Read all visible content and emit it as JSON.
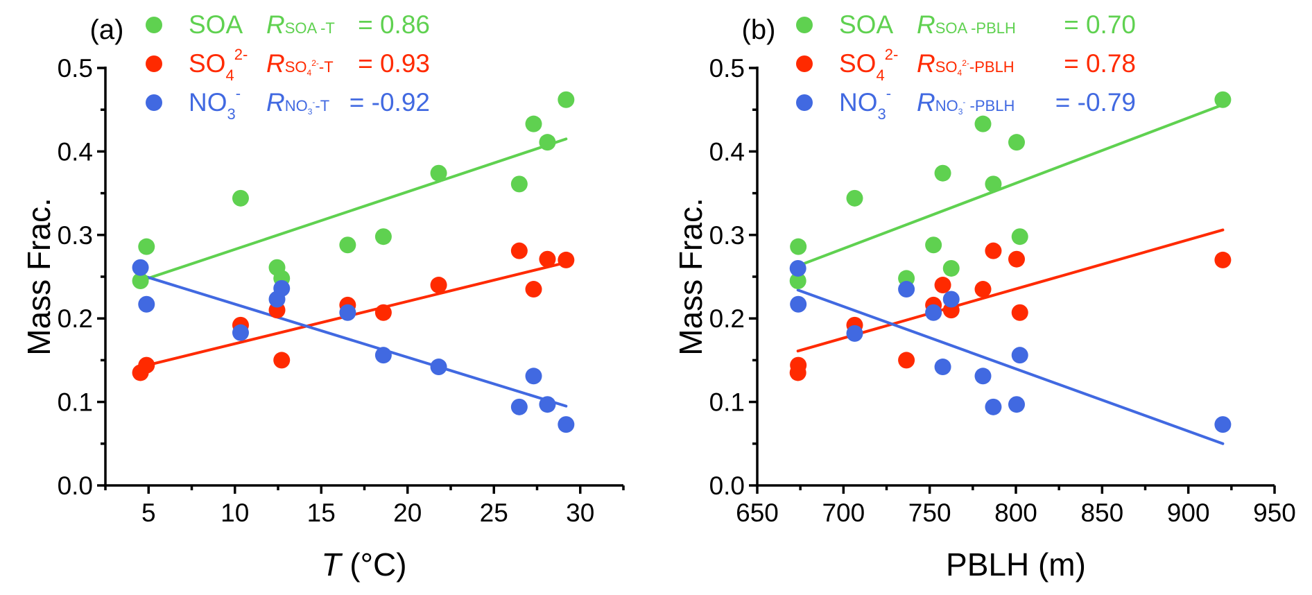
{
  "colors": {
    "SOA": "#5fd150",
    "SO4": "#ff2a00",
    "NO3": "#4169e1",
    "axis": "#000000"
  },
  "chart_data": [
    {
      "type": "scatter",
      "panel_label": "(a)",
      "xlabel_italic": "T",
      "xlabel_rest": " (°C)",
      "ylabel": "Mass Frac.",
      "xlim": [
        2.5,
        32.5
      ],
      "ylim": [
        0.0,
        0.5
      ],
      "xticks": [
        5,
        10,
        15,
        20,
        25,
        30
      ],
      "xticks_minor": [
        2.5,
        7.5,
        12.5,
        17.5,
        22.5,
        27.5,
        32.5
      ],
      "yticks": [
        "0.0",
        "0.1",
        "0.2",
        "0.3",
        "0.4",
        "0.5"
      ],
      "yticks_minor": [
        0.05,
        0.15,
        0.25,
        0.35,
        0.45
      ],
      "grid": false,
      "legend_placement": "top-left",
      "series": [
        {
          "key": "SOA",
          "name": "SOA",
          "name_sub": "",
          "name_sup": "",
          "r_sub": "SOA -T",
          "r_sup": "",
          "r_sub_tail": "",
          "r_value": "0.86",
          "r_eq": "=  0.86",
          "x": [
            4.53,
            4.88,
            10.33,
            12.44,
            12.71,
            16.53,
            18.6,
            21.8,
            26.47,
            27.3,
            28.1,
            29.18
          ],
          "y": [
            0.245,
            0.286,
            0.344,
            0.261,
            0.248,
            0.288,
            0.298,
            0.374,
            0.361,
            0.433,
            0.411,
            0.462
          ],
          "fit": [
            [
              4.53,
              0.245
            ],
            [
              29.18,
              0.415
            ]
          ]
        },
        {
          "key": "SO4",
          "name": "SO",
          "name_sub": "4",
          "name_sup": "2-",
          "r_sub": "SO",
          "r_sub_sub": "4",
          "r_sub_sup": "2-",
          "r_sub_tail": "-T",
          "r_value": "0.93",
          "r_eq": "=  0.93",
          "x": [
            4.53,
            4.88,
            10.33,
            12.44,
            12.71,
            16.53,
            18.6,
            21.8,
            26.47,
            27.3,
            28.1,
            29.18
          ],
          "y": [
            0.135,
            0.144,
            0.192,
            0.21,
            0.15,
            0.216,
            0.207,
            0.24,
            0.281,
            0.235,
            0.271,
            0.27
          ],
          "fit": [
            [
              4.53,
              0.142
            ],
            [
              29.18,
              0.267
            ]
          ]
        },
        {
          "key": "NO3",
          "name": "NO",
          "name_sub": "3",
          "name_sup": "-",
          "r_sub": "NO",
          "r_sub_sub": "3",
          "r_sub_sup": "-",
          "r_sub_tail": "-T",
          "r_value": "-0.92",
          "r_eq": "= -0.92",
          "x": [
            4.53,
            4.88,
            10.33,
            12.44,
            12.71,
            16.53,
            18.6,
            21.8,
            26.47,
            27.3,
            28.1,
            29.18
          ],
          "y": [
            0.261,
            0.217,
            0.183,
            0.223,
            0.236,
            0.207,
            0.156,
            0.142,
            0.094,
            0.131,
            0.097,
            0.073
          ],
          "fit": [
            [
              4.53,
              0.252
            ],
            [
              29.18,
              0.095
            ]
          ]
        }
      ]
    },
    {
      "type": "scatter",
      "panel_label": "(b)",
      "xlabel_italic": "",
      "xlabel_rest": "PBLH (m)",
      "ylabel": "Mass Frac.",
      "xlim": [
        650,
        950
      ],
      "ylim": [
        0.0,
        0.5
      ],
      "xticks": [
        650,
        700,
        750,
        800,
        850,
        900,
        950
      ],
      "xticks_minor": [
        675,
        725,
        775,
        825,
        875,
        925
      ],
      "yticks": [
        "0.0",
        "0.1",
        "0.2",
        "0.3",
        "0.4",
        "0.5"
      ],
      "yticks_minor": [
        0.05,
        0.15,
        0.25,
        0.35,
        0.45
      ],
      "grid": false,
      "legend_placement": "top-left",
      "series": [
        {
          "key": "SOA",
          "name": "SOA",
          "name_sub": "",
          "name_sup": "",
          "r_sub": "SOA -PBLH",
          "r_sup": "",
          "r_sub_tail": "",
          "r_value": "0.70",
          "r_eq": "=  0.70",
          "x": [
            673.6,
            673.8,
            706.5,
            762.5,
            736.5,
            752.2,
            802.3,
            757.6,
            786.9,
            780.9,
            800.4,
            920
          ],
          "y": [
            0.245,
            0.286,
            0.344,
            0.26,
            0.248,
            0.288,
            0.298,
            0.374,
            0.361,
            0.433,
            0.411,
            0.462
          ],
          "fit": [
            [
              673.6,
              0.263
            ],
            [
              920,
              0.456
            ]
          ]
        },
        {
          "key": "SO4",
          "name": "SO",
          "name_sub": "4",
          "name_sup": "2-",
          "r_sub": "SO",
          "r_sub_sub": "4",
          "r_sub_sup": "2-",
          "r_sub_tail": "-PBLH",
          "r_value": "0.78",
          "r_eq": "=  0.78",
          "x": [
            673.6,
            673.8,
            706.5,
            762.5,
            736.5,
            752.2,
            802.3,
            757.6,
            786.9,
            780.9,
            800.4,
            920
          ],
          "y": [
            0.135,
            0.144,
            0.192,
            0.21,
            0.15,
            0.216,
            0.207,
            0.24,
            0.281,
            0.235,
            0.271,
            0.27
          ],
          "fit": [
            [
              673.6,
              0.161
            ],
            [
              920,
              0.306
            ]
          ]
        },
        {
          "key": "NO3",
          "name": "NO",
          "name_sub": "3",
          "name_sup": "-",
          "r_sub": "NO",
          "r_sub_sub": "3",
          "r_sub_sup": "-",
          "r_sub_tail": " -PBLH",
          "r_value": "-0.79",
          "r_eq": "= -0.79",
          "x": [
            673.6,
            673.8,
            706.5,
            762.5,
            736.5,
            752.2,
            802.3,
            757.6,
            786.9,
            780.9,
            800.4,
            920
          ],
          "y": [
            0.26,
            0.217,
            0.182,
            0.223,
            0.235,
            0.207,
            0.156,
            0.142,
            0.094,
            0.131,
            0.097,
            0.073
          ],
          "fit": [
            [
              673.6,
              0.234
            ],
            [
              920,
              0.05
            ]
          ]
        }
      ]
    }
  ]
}
